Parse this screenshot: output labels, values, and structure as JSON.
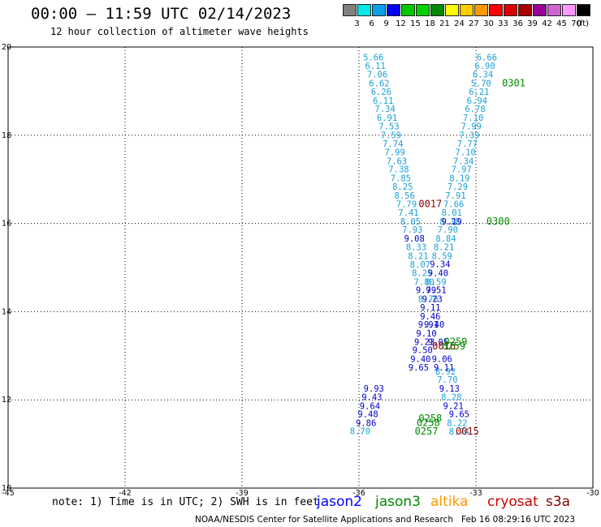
{
  "title": "00:00 – 11:59 UTC 02/14/2023",
  "subtitle": "12 hour collection of altimeter wave heights",
  "colorbar": {
    "unit": "(ft)",
    "entries": [
      {
        "label": "3",
        "color": "#808080"
      },
      {
        "label": "6",
        "color": "#00e8e8"
      },
      {
        "label": "9",
        "color": "#0ca0ea"
      },
      {
        "label": "12",
        "color": "#0000ff"
      },
      {
        "label": "15",
        "color": "#00c800"
      },
      {
        "label": "18",
        "color": "#00d000"
      },
      {
        "label": "21",
        "color": "#008800"
      },
      {
        "label": "24",
        "color": "#ffff00"
      },
      {
        "label": "27",
        "color": "#ffcc00"
      },
      {
        "label": "30",
        "color": "#ff9900"
      },
      {
        "label": "33",
        "color": "#ff0000"
      },
      {
        "label": "36",
        "color": "#dd0000"
      },
      {
        "label": "39",
        "color": "#aa0000"
      },
      {
        "label": "42",
        "color": "#990099"
      },
      {
        "label": "45",
        "color": "#cc66cc"
      },
      {
        "label": "70",
        "color": "#ff99ff"
      },
      {
        "label": "",
        "color": "#000000"
      }
    ]
  },
  "note": "note: 1) Time is in UTC; 2) SWH is in feet",
  "missions": [
    {
      "name": "jason2",
      "color": "#0000ff"
    },
    {
      "name": "jason3",
      "color": "#008800"
    },
    {
      "name": "altika",
      "color": "#ff9900"
    },
    {
      "name": "cryosat",
      "color": "#cc0000"
    },
    {
      "name": "s3a",
      "color": "#880000"
    }
  ],
  "footer": "NOAA/NESDIS Center for Satellite Applications and Research   Feb 16 08:29:16 UTC 2023",
  "chart_data": {
    "type": "scatter",
    "xlim": [
      -45,
      -30
    ],
    "ylim": [
      10,
      20
    ],
    "xticks": [
      -45,
      -42,
      -39,
      -36,
      -33,
      -30
    ],
    "xtick_labels": [
      "-45",
      "-42",
      "-39",
      "-36",
      "-33",
      "-30"
    ],
    "yticks": [
      10,
      12,
      14,
      16,
      18,
      20
    ],
    "ytick_labels": [
      "10",
      "12",
      "14",
      "16",
      "18",
      "20"
    ],
    "grid": true,
    "series": [
      {
        "color": "#1aa0d8",
        "points": [
          {
            "x": -35.63,
            "y": 19.77,
            "label": "5.66"
          },
          {
            "x": -35.58,
            "y": 19.58,
            "label": "6.11"
          },
          {
            "x": -35.53,
            "y": 19.38,
            "label": "7.06"
          },
          {
            "x": -35.48,
            "y": 19.18,
            "label": "6.62"
          },
          {
            "x": -35.43,
            "y": 18.99,
            "label": "6.26"
          },
          {
            "x": -35.38,
            "y": 18.79,
            "label": "6.11"
          },
          {
            "x": -35.33,
            "y": 18.6,
            "label": "7.34"
          },
          {
            "x": -35.28,
            "y": 18.4,
            "label": "6.91"
          },
          {
            "x": -35.23,
            "y": 18.21,
            "label": "7.53"
          },
          {
            "x": -35.18,
            "y": 18.01,
            "label": "7.59"
          },
          {
            "x": -35.13,
            "y": 17.81,
            "label": "7.74"
          },
          {
            "x": -35.08,
            "y": 17.62,
            "label": "7.99"
          },
          {
            "x": -35.03,
            "y": 17.42,
            "label": "7.63"
          },
          {
            "x": -34.98,
            "y": 17.23,
            "label": "7.38"
          },
          {
            "x": -34.93,
            "y": 17.03,
            "label": "7.85"
          },
          {
            "x": -34.88,
            "y": 16.84,
            "label": "8.25"
          },
          {
            "x": -34.83,
            "y": 16.64,
            "label": "8.56"
          },
          {
            "x": -34.78,
            "y": 16.44,
            "label": "7.79"
          },
          {
            "x": -34.73,
            "y": 16.25,
            "label": "7.41"
          },
          {
            "x": -34.68,
            "y": 16.05,
            "label": "8.05"
          },
          {
            "x": -34.63,
            "y": 15.86,
            "label": "7.93"
          },
          {
            "x": -34.53,
            "y": 15.47,
            "label": "8.33"
          },
          {
            "x": -34.48,
            "y": 15.27,
            "label": "8.21"
          },
          {
            "x": -34.43,
            "y": 15.07,
            "label": "8.07"
          },
          {
            "x": -34.38,
            "y": 14.88,
            "label": "8.25"
          },
          {
            "x": -34.33,
            "y": 14.68,
            "label": "7.80"
          },
          {
            "x": -34.22,
            "y": 14.29,
            "label": "8.76"
          },
          {
            "x": -33.78,
            "y": 12.65,
            "label": "8.92"
          },
          {
            "x": -33.73,
            "y": 12.46,
            "label": "7.70"
          },
          {
            "x": -33.63,
            "y": 12.07,
            "label": "8.28"
          },
          {
            "x": -33.48,
            "y": 11.48,
            "label": "8.22"
          },
          {
            "x": -33.43,
            "y": 11.29,
            "label": "8.74"
          },
          {
            "x": -35.97,
            "y": 11.3,
            "label": "8.70"
          },
          {
            "x": -32.72,
            "y": 19.77,
            "label": "6.66"
          },
          {
            "x": -32.77,
            "y": 19.58,
            "label": "6.90"
          },
          {
            "x": -32.82,
            "y": 19.38,
            "label": "6.34"
          },
          {
            "x": -32.87,
            "y": 19.18,
            "label": "5.70"
          },
          {
            "x": -32.92,
            "y": 18.99,
            "label": "6.21"
          },
          {
            "x": -32.97,
            "y": 18.79,
            "label": "6.94"
          },
          {
            "x": -33.02,
            "y": 18.6,
            "label": "6.78"
          },
          {
            "x": -33.07,
            "y": 18.4,
            "label": "7.10"
          },
          {
            "x": -33.12,
            "y": 18.21,
            "label": "7.99"
          },
          {
            "x": -33.17,
            "y": 18.01,
            "label": "7.39"
          },
          {
            "x": -33.22,
            "y": 17.81,
            "label": "7.77"
          },
          {
            "x": -33.27,
            "y": 17.62,
            "label": "7.10"
          },
          {
            "x": -33.32,
            "y": 17.42,
            "label": "7.34"
          },
          {
            "x": -33.37,
            "y": 17.23,
            "label": "7.97"
          },
          {
            "x": -33.42,
            "y": 17.03,
            "label": "8.19"
          },
          {
            "x": -33.47,
            "y": 16.84,
            "label": "7.29"
          },
          {
            "x": -33.52,
            "y": 16.64,
            "label": "7.91"
          },
          {
            "x": -33.57,
            "y": 16.44,
            "label": "7.66"
          },
          {
            "x": -33.62,
            "y": 16.25,
            "label": "8.01"
          },
          {
            "x": -33.67,
            "y": 16.05,
            "label": "8.18"
          },
          {
            "x": -33.72,
            "y": 15.86,
            "label": "7.90"
          },
          {
            "x": -33.77,
            "y": 15.66,
            "label": "8.84"
          },
          {
            "x": -33.82,
            "y": 15.47,
            "label": "8.21"
          },
          {
            "x": -33.87,
            "y": 15.27,
            "label": "8.59"
          },
          {
            "x": -34.02,
            "y": 14.68,
            "label": "8.59"
          }
        ]
      },
      {
        "color": "#0000cc",
        "points": [
          {
            "x": -34.58,
            "y": 15.66,
            "label": "9.08"
          },
          {
            "x": -34.28,
            "y": 14.49,
            "label": "9.79"
          },
          {
            "x": -34.17,
            "y": 14.1,
            "label": "9.11"
          },
          {
            "x": -34.07,
            "y": 13.71,
            "label": "9.40"
          },
          {
            "x": -33.97,
            "y": 13.32,
            "label": "9.05"
          },
          {
            "x": -33.87,
            "y": 12.93,
            "label": "9.06"
          },
          {
            "x": -33.82,
            "y": 12.74,
            "label": "9.11"
          },
          {
            "x": -33.68,
            "y": 12.26,
            "label": "9.13"
          },
          {
            "x": -33.58,
            "y": 11.87,
            "label": "9.21"
          },
          {
            "x": -33.43,
            "y": 11.68,
            "label": "9.65"
          },
          {
            "x": -35.62,
            "y": 12.26,
            "label": "9.93"
          },
          {
            "x": -35.67,
            "y": 12.07,
            "label": "9.43"
          },
          {
            "x": -35.72,
            "y": 11.87,
            "label": "9.64"
          },
          {
            "x": -35.77,
            "y": 11.68,
            "label": "9.48"
          },
          {
            "x": -35.82,
            "y": 11.48,
            "label": "9.86"
          },
          {
            "x": -33.62,
            "y": 16.05,
            "label": "9.19"
          },
          {
            "x": -33.92,
            "y": 15.08,
            "label": "9.34"
          },
          {
            "x": -33.97,
            "y": 14.88,
            "label": "9.40"
          },
          {
            "x": -34.02,
            "y": 14.49,
            "label": "9.51"
          },
          {
            "x": -34.12,
            "y": 14.29,
            "label": "9.23"
          },
          {
            "x": -34.17,
            "y": 13.9,
            "label": "9.46"
          },
          {
            "x": -34.22,
            "y": 13.71,
            "label": "9.91"
          },
          {
            "x": -34.27,
            "y": 13.51,
            "label": "9.10"
          },
          {
            "x": -34.32,
            "y": 13.32,
            "label": "9.23"
          },
          {
            "x": -34.37,
            "y": 13.13,
            "label": "9.50"
          },
          {
            "x": -34.42,
            "y": 12.93,
            "label": "9.40"
          },
          {
            "x": -34.47,
            "y": 12.74,
            "label": "9.65"
          }
        ]
      }
    ],
    "annotations": [
      {
        "text": "0017",
        "x": -34.17,
        "y": 16.44,
        "color": "#880000"
      },
      {
        "text": "0016",
        "x": -33.82,
        "y": 13.22,
        "color": "#880000"
      },
      {
        "text": "0015",
        "x": -33.22,
        "y": 11.29,
        "color": "#880000"
      },
      {
        "text": "0301",
        "x": -32.03,
        "y": 19.18,
        "color": "#008800"
      },
      {
        "text": "0300",
        "x": -32.43,
        "y": 16.05,
        "color": "#008800"
      },
      {
        "text": "0259",
        "x": -33.52,
        "y": 13.32,
        "color": "#008800"
      },
      {
        "text": "0259",
        "x": -33.57,
        "y": 13.22,
        "color": "#008800"
      },
      {
        "text": "0258",
        "x": -34.17,
        "y": 11.58,
        "color": "#008800"
      },
      {
        "text": "0258",
        "x": -34.22,
        "y": 11.48,
        "color": "#008800"
      },
      {
        "text": "0257",
        "x": -34.27,
        "y": 11.29,
        "color": "#008800"
      }
    ]
  }
}
